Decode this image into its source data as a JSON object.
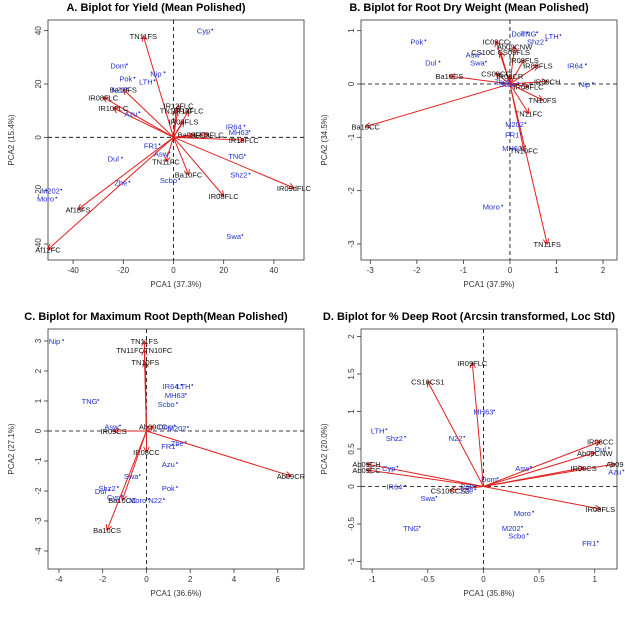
{
  "chart_data": [
    {
      "type": "scatter",
      "panel_label": "A.",
      "title": "Biplot for Yield (Mean Polished)",
      "xlabel": "PCA1 (37.3%)",
      "ylabel": "PCA2 (15.4%)",
      "xlim": [
        -50,
        52
      ],
      "ylim": [
        -46,
        44
      ],
      "xticks": [
        -40,
        -20,
        0,
        20,
        40
      ],
      "yticks": [
        -40,
        -20,
        0,
        20,
        40
      ],
      "environments": [
        {
          "name": "TN11FS",
          "x": -12,
          "y": 38
        },
        {
          "name": "Ba10FS",
          "x": -20,
          "y": 18
        },
        {
          "name": "IR08FLC",
          "x": -28,
          "y": 15
        },
        {
          "name": "IR10FLC",
          "x": -24,
          "y": 11
        },
        {
          "name": "IR12FLC",
          "x": 2,
          "y": 12
        },
        {
          "name": "IR10FLC",
          "x": 6,
          "y": 10
        },
        {
          "name": "TN10FLC",
          "x": 1,
          "y": 10
        },
        {
          "name": "IR09FLS",
          "x": 4,
          "y": 6
        },
        {
          "name": "Ba09FES",
          "x": 8,
          "y": 1
        },
        {
          "name": "IR09FLC",
          "x": 14,
          "y": 1
        },
        {
          "name": "IR18FLC",
          "x": 28,
          "y": -1
        },
        {
          "name": "TN11FC",
          "x": -3,
          "y": -9
        },
        {
          "name": "Ba10FC",
          "x": 6,
          "y": -14
        },
        {
          "name": "IR08FLC",
          "x": 20,
          "y": -22
        },
        {
          "name": "IR09dFLC",
          "x": 48,
          "y": -19
        },
        {
          "name": "Af18FS",
          "x": -38,
          "y": -27
        },
        {
          "name": "Af12FC",
          "x": -50,
          "y": -42
        }
      ],
      "genotypes": [
        {
          "name": "Cyp",
          "x": 12,
          "y": 40
        },
        {
          "name": "Dom",
          "x": -22,
          "y": 27
        },
        {
          "name": "Nip",
          "x": -7,
          "y": 24
        },
        {
          "name": "Pok",
          "x": -19,
          "y": 22
        },
        {
          "name": "LTH",
          "x": -11,
          "y": 21
        },
        {
          "name": "N22",
          "x": -22,
          "y": 18
        },
        {
          "name": "Azu",
          "x": -17,
          "y": 9
        },
        {
          "name": "IR64",
          "x": 24,
          "y": 4
        },
        {
          "name": "MH63",
          "x": 26,
          "y": 2
        },
        {
          "name": "FR1",
          "x": -9,
          "y": -3
        },
        {
          "name": "Asw",
          "x": -5,
          "y": -6
        },
        {
          "name": "Dul",
          "x": -24,
          "y": -8
        },
        {
          "name": "TNG",
          "x": 25,
          "y": -7
        },
        {
          "name": "Scbo",
          "x": -2,
          "y": -16
        },
        {
          "name": "Shz2",
          "x": 26,
          "y": -14
        },
        {
          "name": "Zhe",
          "x": -21,
          "y": -17
        },
        {
          "name": "M202",
          "x": -49,
          "y": -20
        },
        {
          "name": "Moro",
          "x": -51,
          "y": -23
        },
        {
          "name": "Swa",
          "x": 24,
          "y": -37
        }
      ]
    },
    {
      "type": "scatter",
      "panel_label": "B.",
      "title": "Biplot for Root Dry Weight (Mean Polished)",
      "xlabel": "PCA1 (37.9%)",
      "ylabel": "PCA2 (34.5%)",
      "xlim": [
        -3.2,
        2.3
      ],
      "ylim": [
        -3.3,
        1.2
      ],
      "xticks": [
        -3,
        -2,
        -1,
        0,
        1,
        2
      ],
      "yticks": [
        -3,
        -2,
        -1,
        0,
        1
      ],
      "environments": [
        {
          "name": "IC09CC",
          "x": -0.3,
          "y": 0.8
        },
        {
          "name": "Ab09CNW",
          "x": 0.1,
          "y": 0.7
        },
        {
          "name": "CS10C CS09FLS",
          "x": -0.2,
          "y": 0.6
        },
        {
          "name": "IR09FLS",
          "x": 0.3,
          "y": 0.45
        },
        {
          "name": "IR08FLS",
          "x": 0.6,
          "y": 0.35
        },
        {
          "name": "Ba10CS",
          "x": -1.3,
          "y": 0.15
        },
        {
          "name": "CS09CC",
          "x": -0.3,
          "y": 0.2
        },
        {
          "name": "IR08CR",
          "x": 0.0,
          "y": 0.15
        },
        {
          "name": "IR09CH",
          "x": 0.8,
          "y": 0.05
        },
        {
          "name": "IR08FLC",
          "x": 0.4,
          "y": -0.05
        },
        {
          "name": "TN10FS",
          "x": 0.7,
          "y": -0.3
        },
        {
          "name": "TN11FC",
          "x": 0.4,
          "y": -0.55
        },
        {
          "name": "TN10FC",
          "x": 0.3,
          "y": -1.25
        },
        {
          "name": "Ba10CC",
          "x": -3.1,
          "y": -0.8
        },
        {
          "name": "TN11FS",
          "x": 0.8,
          "y": -3.0
        }
      ],
      "genotypes": [
        {
          "name": "Pok",
          "x": -2.0,
          "y": 0.8
        },
        {
          "name": "Dom",
          "x": 0.2,
          "y": 0.95
        },
        {
          "name": "TNG",
          "x": 0.4,
          "y": 0.95
        },
        {
          "name": "LTH",
          "x": 0.9,
          "y": 0.9
        },
        {
          "name": "Shz2",
          "x": 0.55,
          "y": 0.8
        },
        {
          "name": "Dul",
          "x": -1.7,
          "y": 0.4
        },
        {
          "name": "Asw",
          "x": -0.8,
          "y": 0.55
        },
        {
          "name": "Swa",
          "x": -0.7,
          "y": 0.4
        },
        {
          "name": "IR64",
          "x": 1.4,
          "y": 0.35
        },
        {
          "name": "Nip",
          "x": 1.6,
          "y": 0.0
        },
        {
          "name": "Zhe",
          "x": -0.2,
          "y": 0.05
        },
        {
          "name": "Scbo",
          "x": -0.05,
          "y": 0.0
        },
        {
          "name": "M202",
          "x": 0.1,
          "y": -0.75
        },
        {
          "name": "FR1",
          "x": 0.05,
          "y": -0.95
        },
        {
          "name": "MH63",
          "x": 0.05,
          "y": -1.2
        },
        {
          "name": "Moro",
          "x": -0.4,
          "y": -2.3
        }
      ]
    },
    {
      "type": "scatter",
      "panel_label": "C.",
      "title": "Biplot for Maximum Root Depth(Mean Polished)",
      "xlabel": "PCA1 (36.6%)",
      "ylabel": "PCA2 (27.1%)",
      "xlim": [
        -4.5,
        7.2
      ],
      "ylim": [
        -4.6,
        3.4
      ],
      "xticks": [
        -4,
        -2,
        0,
        2,
        4,
        6
      ],
      "yticks": [
        -4,
        -3,
        -2,
        -1,
        0,
        1,
        2,
        3
      ],
      "environments": [
        {
          "name": "TN11FS",
          "x": -0.1,
          "y": 3.0
        },
        {
          "name": "TN11FCTN10FC",
          "x": -0.1,
          "y": 2.7
        },
        {
          "name": "TN10FS",
          "x": -0.05,
          "y": 2.3
        },
        {
          "name": "IR09CS",
          "x": -1.5,
          "y": 0.0
        },
        {
          "name": "Ab09CC",
          "x": 0.3,
          "y": 0.15
        },
        {
          "name": "IR08CC",
          "x": 0.0,
          "y": -0.7
        },
        {
          "name": "Ab09CR",
          "x": 6.6,
          "y": -1.5
        },
        {
          "name": "Ba10CC",
          "x": -1.1,
          "y": -2.3
        },
        {
          "name": "Ba10CS",
          "x": -1.8,
          "y": -3.3
        }
      ],
      "genotypes": [
        {
          "name": "Nip",
          "x": -4.2,
          "y": 3.0
        },
        {
          "name": "IR64",
          "x": 1.1,
          "y": 1.5
        },
        {
          "name": "LTH",
          "x": 1.7,
          "y": 1.5
        },
        {
          "name": "MH63",
          "x": 1.3,
          "y": 1.2
        },
        {
          "name": "Scbo",
          "x": 0.9,
          "y": 0.9
        },
        {
          "name": "TNG",
          "x": -2.6,
          "y": 1.0
        },
        {
          "name": "Asw",
          "x": -1.6,
          "y": 0.15
        },
        {
          "name": "Dom",
          "x": 0.9,
          "y": 0.15
        },
        {
          "name": "M202",
          "x": 1.4,
          "y": 0.1
        },
        {
          "name": "Zhe",
          "x": 1.4,
          "y": -0.4
        },
        {
          "name": "FR1",
          "x": 1.0,
          "y": -0.5
        },
        {
          "name": "Azu",
          "x": 1.0,
          "y": -1.1
        },
        {
          "name": "Swa",
          "x": -0.7,
          "y": -1.5
        },
        {
          "name": "Shz2",
          "x": -1.8,
          "y": -1.9
        },
        {
          "name": "Dul",
          "x": -2.1,
          "y": -2.0
        },
        {
          "name": "Cyp",
          "x": -1.5,
          "y": -2.2
        },
        {
          "name": "Pok",
          "x": 1.0,
          "y": -1.9
        },
        {
          "name": "Moro",
          "x": -0.4,
          "y": -2.3
        },
        {
          "name": "N22",
          "x": 0.4,
          "y": -2.3
        }
      ]
    },
    {
      "type": "scatter",
      "panel_label": "D.",
      "title": "Biplot for % Deep Root (Arcsin transformed, Loc Std)",
      "xlabel": "PCA1 (35.8%)",
      "ylabel": "PCA2 (20.0%)",
      "xlim": [
        -1.1,
        1.2
      ],
      "ylim": [
        -1.1,
        2.1
      ],
      "xticks": [
        -1.0,
        -0.5,
        0.0,
        0.5,
        1.0
      ],
      "yticks": [
        -1.0,
        -0.5,
        0.0,
        0.5,
        1.0,
        1.5,
        2.0
      ],
      "environments": [
        {
          "name": "IR09FLC",
          "x": -0.1,
          "y": 1.65
        },
        {
          "name": "CS10CS1",
          "x": -0.5,
          "y": 1.4
        },
        {
          "name": "IR08CC",
          "x": 1.05,
          "y": 0.6
        },
        {
          "name": "Ab09CNW",
          "x": 1.0,
          "y": 0.45
        },
        {
          "name": "Ab09",
          "x": 1.18,
          "y": 0.3
        },
        {
          "name": "IR08CS",
          "x": 0.9,
          "y": 0.25
        },
        {
          "name": "Ab09CH",
          "x": -1.05,
          "y": 0.3
        },
        {
          "name": "Ab09CC",
          "x": -1.05,
          "y": 0.22
        },
        {
          "name": "CS10CCS2",
          "x": -0.3,
          "y": -0.05
        },
        {
          "name": "IR08FLS",
          "x": 1.05,
          "y": -0.3
        }
      ],
      "genotypes": [
        {
          "name": "MH63",
          "x": 0.0,
          "y": 1.0
        },
        {
          "name": "LTH",
          "x": -0.95,
          "y": 0.75
        },
        {
          "name": "Shz2",
          "x": -0.8,
          "y": 0.65
        },
        {
          "name": "N22",
          "x": -0.25,
          "y": 0.65
        },
        {
          "name": "Dul",
          "x": 1.05,
          "y": 0.5
        },
        {
          "name": "Azu",
          "x": 1.18,
          "y": 0.2
        },
        {
          "name": "Asw",
          "x": 0.35,
          "y": 0.25
        },
        {
          "name": "Cyp",
          "x": -0.85,
          "y": 0.25
        },
        {
          "name": "Dom",
          "x": 0.05,
          "y": 0.1
        },
        {
          "name": "IR64",
          "x": -0.8,
          "y": 0.0
        },
        {
          "name": "Pok",
          "x": -0.15,
          "y": 0.0
        },
        {
          "name": "Zhe",
          "x": -0.15,
          "y": -0.05
        },
        {
          "name": "Swa",
          "x": -0.5,
          "y": -0.15
        },
        {
          "name": "Moro",
          "x": 0.35,
          "y": -0.35
        },
        {
          "name": "TNG",
          "x": -0.65,
          "y": -0.55
        },
        {
          "name": "M202",
          "x": 0.25,
          "y": -0.55
        },
        {
          "name": "Scbo",
          "x": 0.3,
          "y": -0.65
        },
        {
          "name": "FR1",
          "x": 0.95,
          "y": -0.75
        }
      ]
    }
  ]
}
